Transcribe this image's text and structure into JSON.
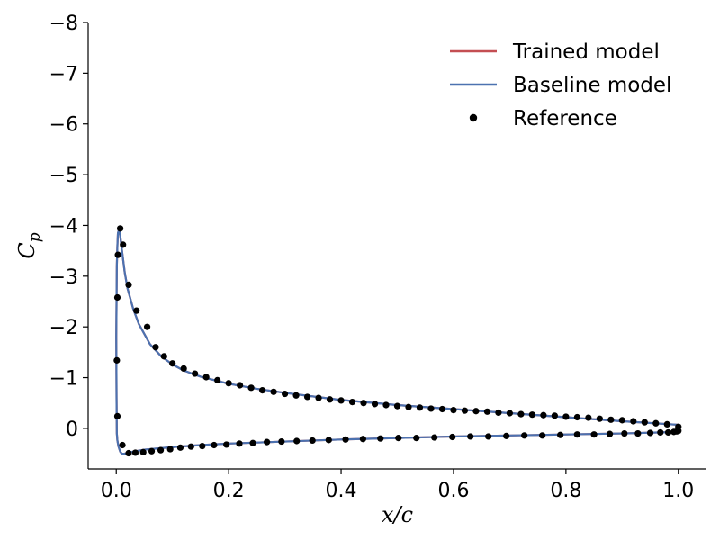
{
  "chart_data": {
    "type": "line",
    "title": "",
    "xlabel": "x/c",
    "ylabel": "C_p",
    "xlim": [
      -0.05,
      1.05
    ],
    "ylim": [
      0.8,
      -8
    ],
    "y_inverted": true,
    "grid": false,
    "legend_position": "top-right",
    "x_ticks": [
      {
        "value": 0.0,
        "label": "0.0"
      },
      {
        "value": 0.2,
        "label": "0.2"
      },
      {
        "value": 0.4,
        "label": "0.4"
      },
      {
        "value": 0.6,
        "label": "0.6"
      },
      {
        "value": 0.8,
        "label": "0.8"
      },
      {
        "value": 1.0,
        "label": "1.0"
      }
    ],
    "y_ticks": [
      {
        "value": -8,
        "label": "−8"
      },
      {
        "value": -7,
        "label": "−7"
      },
      {
        "value": -6,
        "label": "−6"
      },
      {
        "value": -5,
        "label": "−5"
      },
      {
        "value": -4,
        "label": "−4"
      },
      {
        "value": -3,
        "label": "−3"
      },
      {
        "value": -2,
        "label": "−2"
      },
      {
        "value": -1,
        "label": "−1"
      },
      {
        "value": 0,
        "label": "0"
      }
    ],
    "series": [
      {
        "name": "Trained model",
        "kind": "line",
        "color": "#c44e52",
        "x": [
          1.0,
          0.9,
          0.8,
          0.7,
          0.6,
          0.5,
          0.4,
          0.3,
          0.25,
          0.2,
          0.15,
          0.12,
          0.1,
          0.08,
          0.06,
          0.04,
          0.03,
          0.02,
          0.015,
          0.01,
          0.007,
          0.005,
          0.003,
          0.002,
          0.001,
          0.0,
          0.0005,
          0.001,
          0.002,
          0.004,
          0.007,
          0.01,
          0.015,
          0.02,
          0.03,
          0.05,
          0.08,
          0.1,
          0.15,
          0.2,
          0.3,
          0.4,
          0.5,
          0.6,
          0.7,
          0.8,
          0.9,
          1.0
        ],
        "y": [
          -0.07,
          -0.14,
          -0.22,
          -0.3,
          -0.38,
          -0.46,
          -0.56,
          -0.7,
          -0.78,
          -0.88,
          -1.02,
          -1.14,
          -1.26,
          -1.42,
          -1.66,
          -2.06,
          -2.36,
          -2.76,
          -3.08,
          -3.52,
          -3.8,
          -3.92,
          -3.85,
          -3.6,
          -3.2,
          -1.8,
          -0.6,
          0.1,
          0.24,
          0.36,
          0.46,
          0.5,
          0.5,
          0.48,
          0.46,
          0.42,
          0.39,
          0.37,
          0.33,
          0.3,
          0.26,
          0.22,
          0.19,
          0.16,
          0.14,
          0.12,
          0.1,
          0.07
        ]
      },
      {
        "name": "Baseline model",
        "kind": "line",
        "color": "#4c72b0",
        "x": [
          1.0,
          0.9,
          0.8,
          0.7,
          0.6,
          0.5,
          0.4,
          0.3,
          0.25,
          0.2,
          0.15,
          0.12,
          0.1,
          0.08,
          0.06,
          0.04,
          0.03,
          0.02,
          0.015,
          0.01,
          0.007,
          0.005,
          0.003,
          0.002,
          0.001,
          0.0,
          0.0005,
          0.001,
          0.002,
          0.004,
          0.007,
          0.01,
          0.015,
          0.02,
          0.03,
          0.05,
          0.08,
          0.1,
          0.15,
          0.2,
          0.3,
          0.4,
          0.5,
          0.6,
          0.7,
          0.8,
          0.9,
          1.0
        ],
        "y": [
          -0.07,
          -0.14,
          -0.22,
          -0.3,
          -0.38,
          -0.46,
          -0.56,
          -0.7,
          -0.78,
          -0.88,
          -1.02,
          -1.14,
          -1.26,
          -1.42,
          -1.66,
          -2.06,
          -2.36,
          -2.76,
          -3.08,
          -3.52,
          -3.8,
          -3.92,
          -3.85,
          -3.6,
          -3.2,
          -1.8,
          -0.6,
          0.1,
          0.24,
          0.36,
          0.46,
          0.5,
          0.5,
          0.48,
          0.46,
          0.42,
          0.39,
          0.37,
          0.33,
          0.3,
          0.26,
          0.22,
          0.19,
          0.16,
          0.14,
          0.12,
          0.1,
          0.07
        ]
      },
      {
        "name": "Reference",
        "kind": "scatter",
        "color": "#000000",
        "x": [
          1.0,
          0.98,
          0.96,
          0.94,
          0.92,
          0.9,
          0.88,
          0.86,
          0.84,
          0.82,
          0.8,
          0.78,
          0.76,
          0.74,
          0.72,
          0.7,
          0.68,
          0.66,
          0.64,
          0.62,
          0.6,
          0.58,
          0.56,
          0.54,
          0.52,
          0.5,
          0.48,
          0.46,
          0.44,
          0.42,
          0.4,
          0.38,
          0.36,
          0.34,
          0.32,
          0.3,
          0.28,
          0.26,
          0.24,
          0.22,
          0.2,
          0.18,
          0.16,
          0.14,
          0.12,
          0.1,
          0.085,
          0.07,
          0.055,
          0.036,
          0.022,
          0.012,
          0.007,
          0.003,
          0.002,
          0.001,
          0.002,
          0.011,
          0.022,
          0.034,
          0.048,
          0.063,
          0.079,
          0.096,
          0.114,
          0.133,
          0.153,
          0.174,
          0.196,
          0.219,
          0.243,
          0.268,
          0.294,
          0.321,
          0.349,
          0.378,
          0.408,
          0.439,
          0.47,
          0.502,
          0.534,
          0.566,
          0.598,
          0.63,
          0.662,
          0.694,
          0.726,
          0.758,
          0.79,
          0.82,
          0.85,
          0.878,
          0.904,
          0.928,
          0.95,
          0.968,
          0.982,
          0.992,
          0.997,
          1.0
        ],
        "y": [
          -0.03,
          -0.08,
          -0.1,
          -0.12,
          -0.14,
          -0.16,
          -0.17,
          -0.19,
          -0.21,
          -0.22,
          -0.23,
          -0.25,
          -0.26,
          -0.27,
          -0.28,
          -0.3,
          -0.31,
          -0.33,
          -0.34,
          -0.35,
          -0.36,
          -0.38,
          -0.39,
          -0.41,
          -0.42,
          -0.44,
          -0.46,
          -0.48,
          -0.5,
          -0.52,
          -0.55,
          -0.57,
          -0.6,
          -0.62,
          -0.65,
          -0.68,
          -0.72,
          -0.75,
          -0.8,
          -0.85,
          -0.89,
          -0.95,
          -1.01,
          -1.08,
          -1.18,
          -1.28,
          -1.42,
          -1.6,
          -2.0,
          -2.32,
          -2.83,
          -3.62,
          -3.94,
          -3.42,
          -2.58,
          -1.34,
          -0.24,
          0.33,
          0.49,
          0.48,
          0.47,
          0.45,
          0.43,
          0.41,
          0.38,
          0.36,
          0.35,
          0.33,
          0.32,
          0.3,
          0.29,
          0.27,
          0.26,
          0.25,
          0.24,
          0.23,
          0.22,
          0.21,
          0.2,
          0.19,
          0.19,
          0.18,
          0.17,
          0.16,
          0.16,
          0.15,
          0.14,
          0.14,
          0.13,
          0.12,
          0.12,
          0.11,
          0.1,
          0.1,
          0.09,
          0.08,
          0.08,
          0.07,
          0.06,
          0.05
        ]
      }
    ]
  }
}
